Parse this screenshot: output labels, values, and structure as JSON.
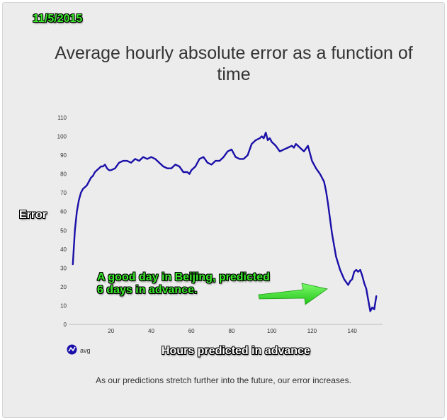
{
  "date_stamp": "11/5/2015",
  "caption": "As our predictions stretch further into the future, our error increases.",
  "annotation": [
    "A good day in Beijing, predicted",
    "6 days in advance."
  ],
  "colors": {
    "line": "#1a0fa8",
    "annotation": "#3bea2b",
    "arrow": "#3bea2b",
    "panel": "#ececec"
  },
  "legend": {
    "icon": "line-chart-icon"
  },
  "chart_data": {
    "type": "line",
    "title": "Average hourly absolute error as a function of time",
    "xlabel": "Hours predicted in advance",
    "ylabel": "Error",
    "xlim": [
      0,
      153
    ],
    "ylim": [
      0,
      110
    ],
    "xticks": [
      20,
      40,
      60,
      80,
      100,
      120,
      140
    ],
    "yticks": [
      0,
      10,
      20,
      30,
      40,
      50,
      60,
      70,
      80,
      90,
      100,
      110
    ],
    "grid": false,
    "legend_position": "bottom-left",
    "series": [
      {
        "name": "avg",
        "x": [
          1,
          2,
          3,
          4,
          5,
          6,
          7,
          8,
          9,
          10,
          11,
          12,
          13,
          14,
          15,
          16,
          17,
          18,
          19,
          20,
          22,
          24,
          26,
          28,
          30,
          32,
          34,
          36,
          38,
          40,
          42,
          44,
          46,
          48,
          50,
          52,
          54,
          56,
          58,
          59,
          60,
          62,
          64,
          66,
          68,
          70,
          72,
          74,
          76,
          78,
          80,
          82,
          84,
          86,
          88,
          90,
          92,
          94,
          95,
          96,
          97,
          98,
          99,
          100,
          102,
          104,
          106,
          108,
          110,
          111,
          112,
          113,
          114,
          116,
          118,
          120,
          122,
          124,
          126,
          127,
          128,
          129,
          130,
          131,
          132,
          134,
          136,
          138,
          139,
          140,
          141,
          142,
          143,
          144,
          145,
          146,
          147,
          148,
          149,
          150,
          151,
          152
        ],
        "y": [
          32,
          50,
          60,
          66,
          70,
          72,
          73,
          74,
          76,
          78,
          79,
          81,
          82,
          83,
          84,
          84,
          85,
          83,
          82,
          82,
          83,
          86,
          87,
          87,
          86,
          88,
          87,
          89,
          88,
          89,
          88,
          86,
          84,
          83,
          83,
          85,
          84,
          81,
          81,
          80,
          82,
          84,
          88,
          89,
          86,
          85,
          87,
          87,
          89,
          92,
          93,
          89,
          88,
          88,
          90,
          96,
          98,
          99,
          100,
          99,
          102,
          98,
          99,
          97,
          95,
          92,
          93,
          94,
          95,
          94,
          96,
          95,
          94,
          92,
          95,
          87,
          83,
          80,
          76,
          71,
          64,
          56,
          48,
          42,
          36,
          29,
          24,
          21,
          23,
          24,
          28,
          29,
          28,
          29,
          26,
          22,
          19,
          13,
          7,
          9,
          8,
          15
        ]
      }
    ]
  }
}
